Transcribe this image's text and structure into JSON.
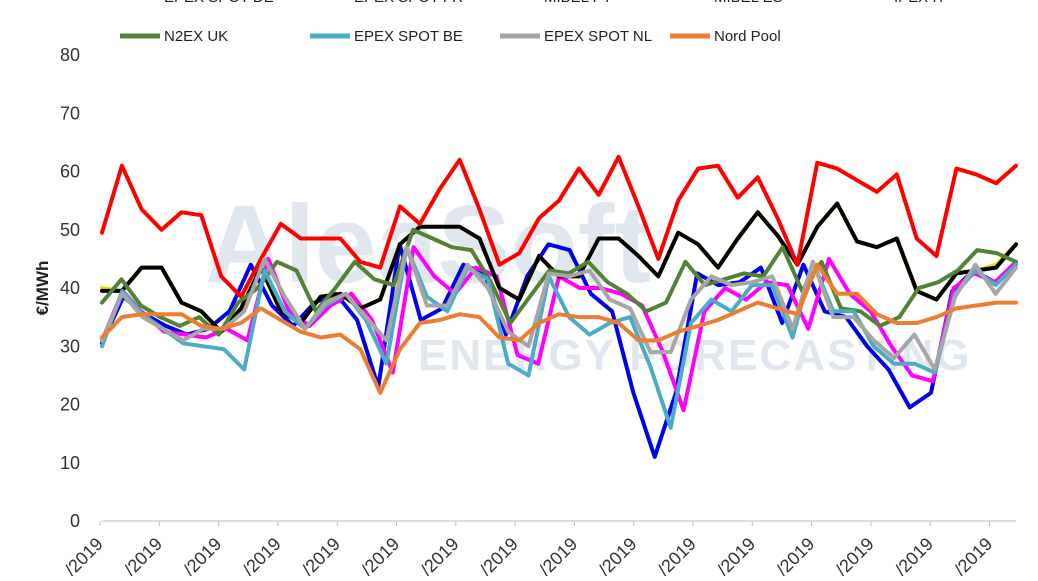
{
  "chart_data": {
    "type": "line",
    "title": "",
    "xlabel": "",
    "ylabel": "€/MWh",
    "ylim": [
      0,
      80
    ],
    "yticks": [
      0,
      10,
      20,
      30,
      40,
      50,
      60,
      70,
      80
    ],
    "grid": false,
    "legend_position": "top",
    "watermark": {
      "line1": "AleaSoft",
      "line2": "ENERGY FORECASTING"
    },
    "x_tick_labels": [
      "/2019",
      "/2019",
      "/2019",
      "/2019",
      "/2019",
      "/2019",
      "/2019",
      "/2019",
      "/2019",
      "/2019",
      "/2019",
      "/2019",
      "/2019",
      "/2019",
      "/2019",
      "/2019"
    ],
    "series": [
      {
        "name": "EPEX SPOT DE",
        "color": "#0000ee",
        "values": [
          30.5,
          38.5,
          35.5,
          33.5,
          32,
          33,
          36,
          44,
          37,
          33.5,
          37.5,
          39,
          34.5,
          23,
          47.5,
          34.5,
          36.5,
          44,
          42.5,
          32,
          42,
          47.5,
          46.5,
          39,
          36,
          22,
          11,
          22,
          42.5,
          40.5,
          41,
          43.5,
          34,
          44,
          36,
          35,
          30,
          26,
          19.5,
          22,
          39.5,
          43,
          41,
          44
        ]
      },
      {
        "name": "EPEX SPOT FR",
        "color": "#ff00ff",
        "values": [
          31,
          39.5,
          35.5,
          32.5,
          32,
          31.5,
          33,
          31,
          45,
          36,
          33.5,
          37,
          39,
          34.5,
          25.5,
          47,
          42,
          39,
          43.5,
          42,
          28.5,
          27,
          42,
          40,
          40,
          39,
          37,
          29,
          19,
          36,
          40,
          38,
          41,
          40.5,
          33,
          45,
          39,
          36,
          30,
          25,
          24,
          40,
          42.5,
          41,
          44.5
        ]
      },
      {
        "name": "MIBEL PT",
        "color": "#e6e600",
        "values": [
          40,
          39.5,
          43.5,
          43.5,
          37.5,
          36,
          32.5,
          36.5,
          43.5,
          36,
          34,
          38.5,
          39,
          36.5,
          38,
          47.5,
          50.5,
          50.5,
          50.5,
          48.5,
          40,
          38,
          45.5,
          42,
          42,
          48.5,
          48.5,
          45.5,
          42,
          49.5,
          47.5,
          43.5,
          48.5,
          53,
          49,
          44,
          50.5,
          54.5,
          48,
          47,
          48.5,
          39.5,
          38,
          42.5,
          43,
          44,
          47.5
        ]
      },
      {
        "name": "MIBEL ES",
        "color": "#000000",
        "values": [
          39.5,
          39.5,
          43.5,
          43.5,
          37.5,
          36,
          32.5,
          36.5,
          43.5,
          36,
          34,
          38.5,
          39,
          36.5,
          38,
          47.5,
          50.5,
          50.5,
          50.5,
          48.5,
          40,
          38,
          45.5,
          42,
          42,
          48.5,
          48.5,
          45.5,
          42,
          49.5,
          47.5,
          43.5,
          48.5,
          53,
          49,
          44,
          50.5,
          54.5,
          48,
          47,
          48.5,
          39.5,
          38,
          42.5,
          43,
          43.5,
          47.5
        ]
      },
      {
        "name": "IPEX IT",
        "color": "#ff0000",
        "values": [
          49.5,
          61,
          53.5,
          50,
          53,
          52.5,
          42,
          38.5,
          45,
          51,
          48.5,
          48.5,
          48.5,
          44.5,
          43.5,
          54,
          51,
          57,
          62,
          53.5,
          44,
          46,
          52,
          55,
          60.5,
          56,
          62.5,
          54,
          45,
          55,
          60.5,
          61,
          55.5,
          59,
          52,
          44,
          61.5,
          60.5,
          58.5,
          56.5,
          59.5,
          48.5,
          45.5,
          60.5,
          59.5,
          58,
          61
        ]
      },
      {
        "name": "N2EX UK",
        "color": "#548235",
        "values": [
          37.5,
          41.5,
          37,
          35,
          33.5,
          35,
          32,
          37.5,
          40,
          44.5,
          43,
          36,
          40,
          44.5,
          41.5,
          40.5,
          50,
          48.5,
          47,
          46.5,
          41,
          34,
          38.5,
          43,
          42.5,
          44.5,
          41,
          39,
          36,
          37.5,
          44.5,
          40.5,
          41.5,
          42.5,
          42,
          47,
          39.5,
          44.5,
          36.5,
          36,
          33.5,
          35,
          40,
          41,
          43,
          46.5,
          46,
          44.5
        ]
      },
      {
        "name": "EPEX SPOT BE",
        "color": "#4bacc6",
        "values": [
          30,
          39.5,
          35.5,
          33,
          30.5,
          30,
          29.5,
          26,
          43,
          36,
          33,
          37,
          39,
          34.5,
          27,
          47,
          38.5,
          36,
          43.5,
          41.5,
          27,
          25,
          42,
          35,
          32,
          34,
          35,
          26.5,
          16,
          34,
          38,
          36,
          40.5,
          40.5,
          31.5,
          44.5,
          36,
          36,
          30,
          27,
          27,
          25.5,
          39,
          43,
          40.5,
          44
        ]
      },
      {
        "name": "EPEX SPOT NL",
        "color": "#a6a6a6",
        "values": [
          31,
          39,
          35,
          33,
          31,
          33,
          33,
          36,
          45,
          38.5,
          33,
          37.5,
          39,
          35,
          31,
          47,
          37,
          37,
          44,
          40,
          32.5,
          30,
          42.5,
          42,
          43,
          38,
          36.5,
          29,
          29,
          38,
          42,
          40.5,
          41,
          42,
          33,
          44.5,
          35,
          35,
          31,
          28,
          32,
          26,
          38.5,
          44,
          39,
          43.5
        ]
      },
      {
        "name": "Nord Pool",
        "color": "#ed7d31",
        "values": [
          31.5,
          35,
          35.5,
          35.5,
          35.5,
          33.5,
          33,
          34,
          36.5,
          34.5,
          32.5,
          31.5,
          32,
          29.5,
          22,
          29.5,
          34,
          34.5,
          35.5,
          35,
          31.5,
          31,
          34,
          35.5,
          35,
          35,
          34,
          31,
          31,
          32.5,
          33.5,
          34.5,
          36,
          37.5,
          36.5,
          35.5,
          44,
          39,
          39,
          35.5,
          34,
          34,
          35,
          36.5,
          37,
          37.5,
          37.5
        ]
      }
    ]
  }
}
